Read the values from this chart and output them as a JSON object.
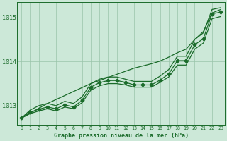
{
  "xlabel": "Graphe pression niveau de la mer (hPa)",
  "bg_color": "#cce8d8",
  "grid_color": "#99c4aa",
  "line_color": "#1a6b2a",
  "text_color": "#1a6b2a",
  "hours": [
    0,
    1,
    2,
    3,
    4,
    5,
    6,
    7,
    8,
    9,
    10,
    11,
    12,
    13,
    14,
    15,
    16,
    17,
    18,
    19,
    20,
    21,
    22,
    23
  ],
  "series_main": [
    1012.72,
    1012.85,
    1012.92,
    1012.97,
    1012.93,
    1013.02,
    1012.97,
    1013.12,
    1013.42,
    1013.52,
    1013.57,
    1013.57,
    1013.53,
    1013.47,
    1013.47,
    1013.47,
    1013.58,
    1013.72,
    1014.02,
    1014.02,
    1014.38,
    1014.52,
    1015.08,
    1015.12
  ],
  "series_low": [
    1012.72,
    1012.82,
    1012.88,
    1012.93,
    1012.88,
    1012.97,
    1012.93,
    1013.07,
    1013.35,
    1013.45,
    1013.5,
    1013.5,
    1013.47,
    1013.42,
    1013.42,
    1013.42,
    1013.53,
    1013.65,
    1013.92,
    1013.92,
    1014.28,
    1014.42,
    1014.97,
    1015.02
  ],
  "series_high": [
    1012.72,
    1012.9,
    1013.0,
    1013.05,
    1013.0,
    1013.1,
    1013.05,
    1013.2,
    1013.5,
    1013.6,
    1013.65,
    1013.65,
    1013.6,
    1013.55,
    1013.55,
    1013.55,
    1013.67,
    1013.82,
    1014.12,
    1014.12,
    1014.5,
    1014.65,
    1015.18,
    1015.22
  ],
  "series_trend": [
    1012.72,
    1012.83,
    1012.94,
    1013.05,
    1013.14,
    1013.23,
    1013.32,
    1013.41,
    1013.5,
    1013.57,
    1013.64,
    1013.71,
    1013.78,
    1013.85,
    1013.9,
    1013.95,
    1014.01,
    1014.1,
    1014.2,
    1014.28,
    1014.5,
    1014.68,
    1015.1,
    1015.18
  ],
  "ylim": [
    1012.55,
    1015.35
  ],
  "yticks": [
    1013,
    1014,
    1015
  ],
  "marker": "D",
  "marker_size": 2.5,
  "lw": 0.9
}
